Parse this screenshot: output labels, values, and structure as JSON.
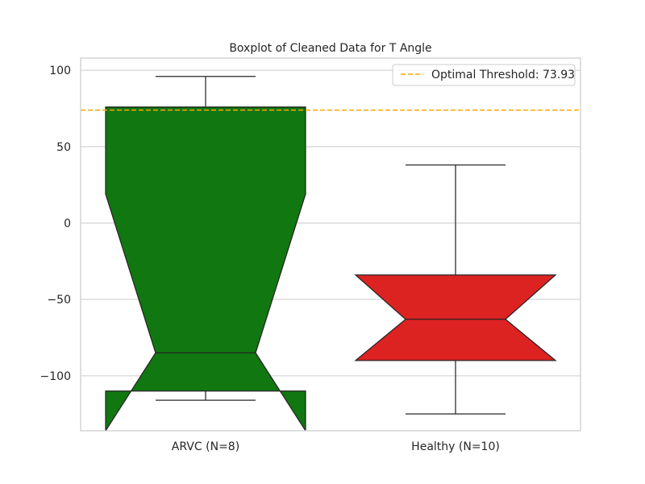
{
  "chart_data": {
    "type": "boxplot",
    "title": "Boxplot of Cleaned Data for T Angle",
    "xlabel": "",
    "ylabel": "",
    "ylim": [
      -136,
      108
    ],
    "yticks": [
      100,
      50,
      0,
      -50,
      -100
    ],
    "ytick_labels": [
      "100",
      "50",
      "0",
      "−50",
      "−100"
    ],
    "grid": true,
    "notched": true,
    "categories": [
      "ARVC (N=8)",
      "Healthy (N=10)"
    ],
    "boxes": [
      {
        "label": "ARVC (N=8)",
        "color": "#117711",
        "whisker_low": -116,
        "q1": -110,
        "median": -85,
        "q3": 76,
        "whisker_high": 96,
        "notch_low": -136,
        "notch_high": 19
      },
      {
        "label": "Healthy (N=10)",
        "color": "#dd2222",
        "whisker_low": -125,
        "q1": -90,
        "median": -63,
        "q3": -34,
        "whisker_high": 38,
        "notch_low": -90,
        "notch_high": -34
      }
    ],
    "threshold": {
      "value": 73.93,
      "label": "Optimal Threshold: 73.93",
      "color": "#ffa500",
      "style": "dashed"
    },
    "legend_position": "top-right"
  }
}
